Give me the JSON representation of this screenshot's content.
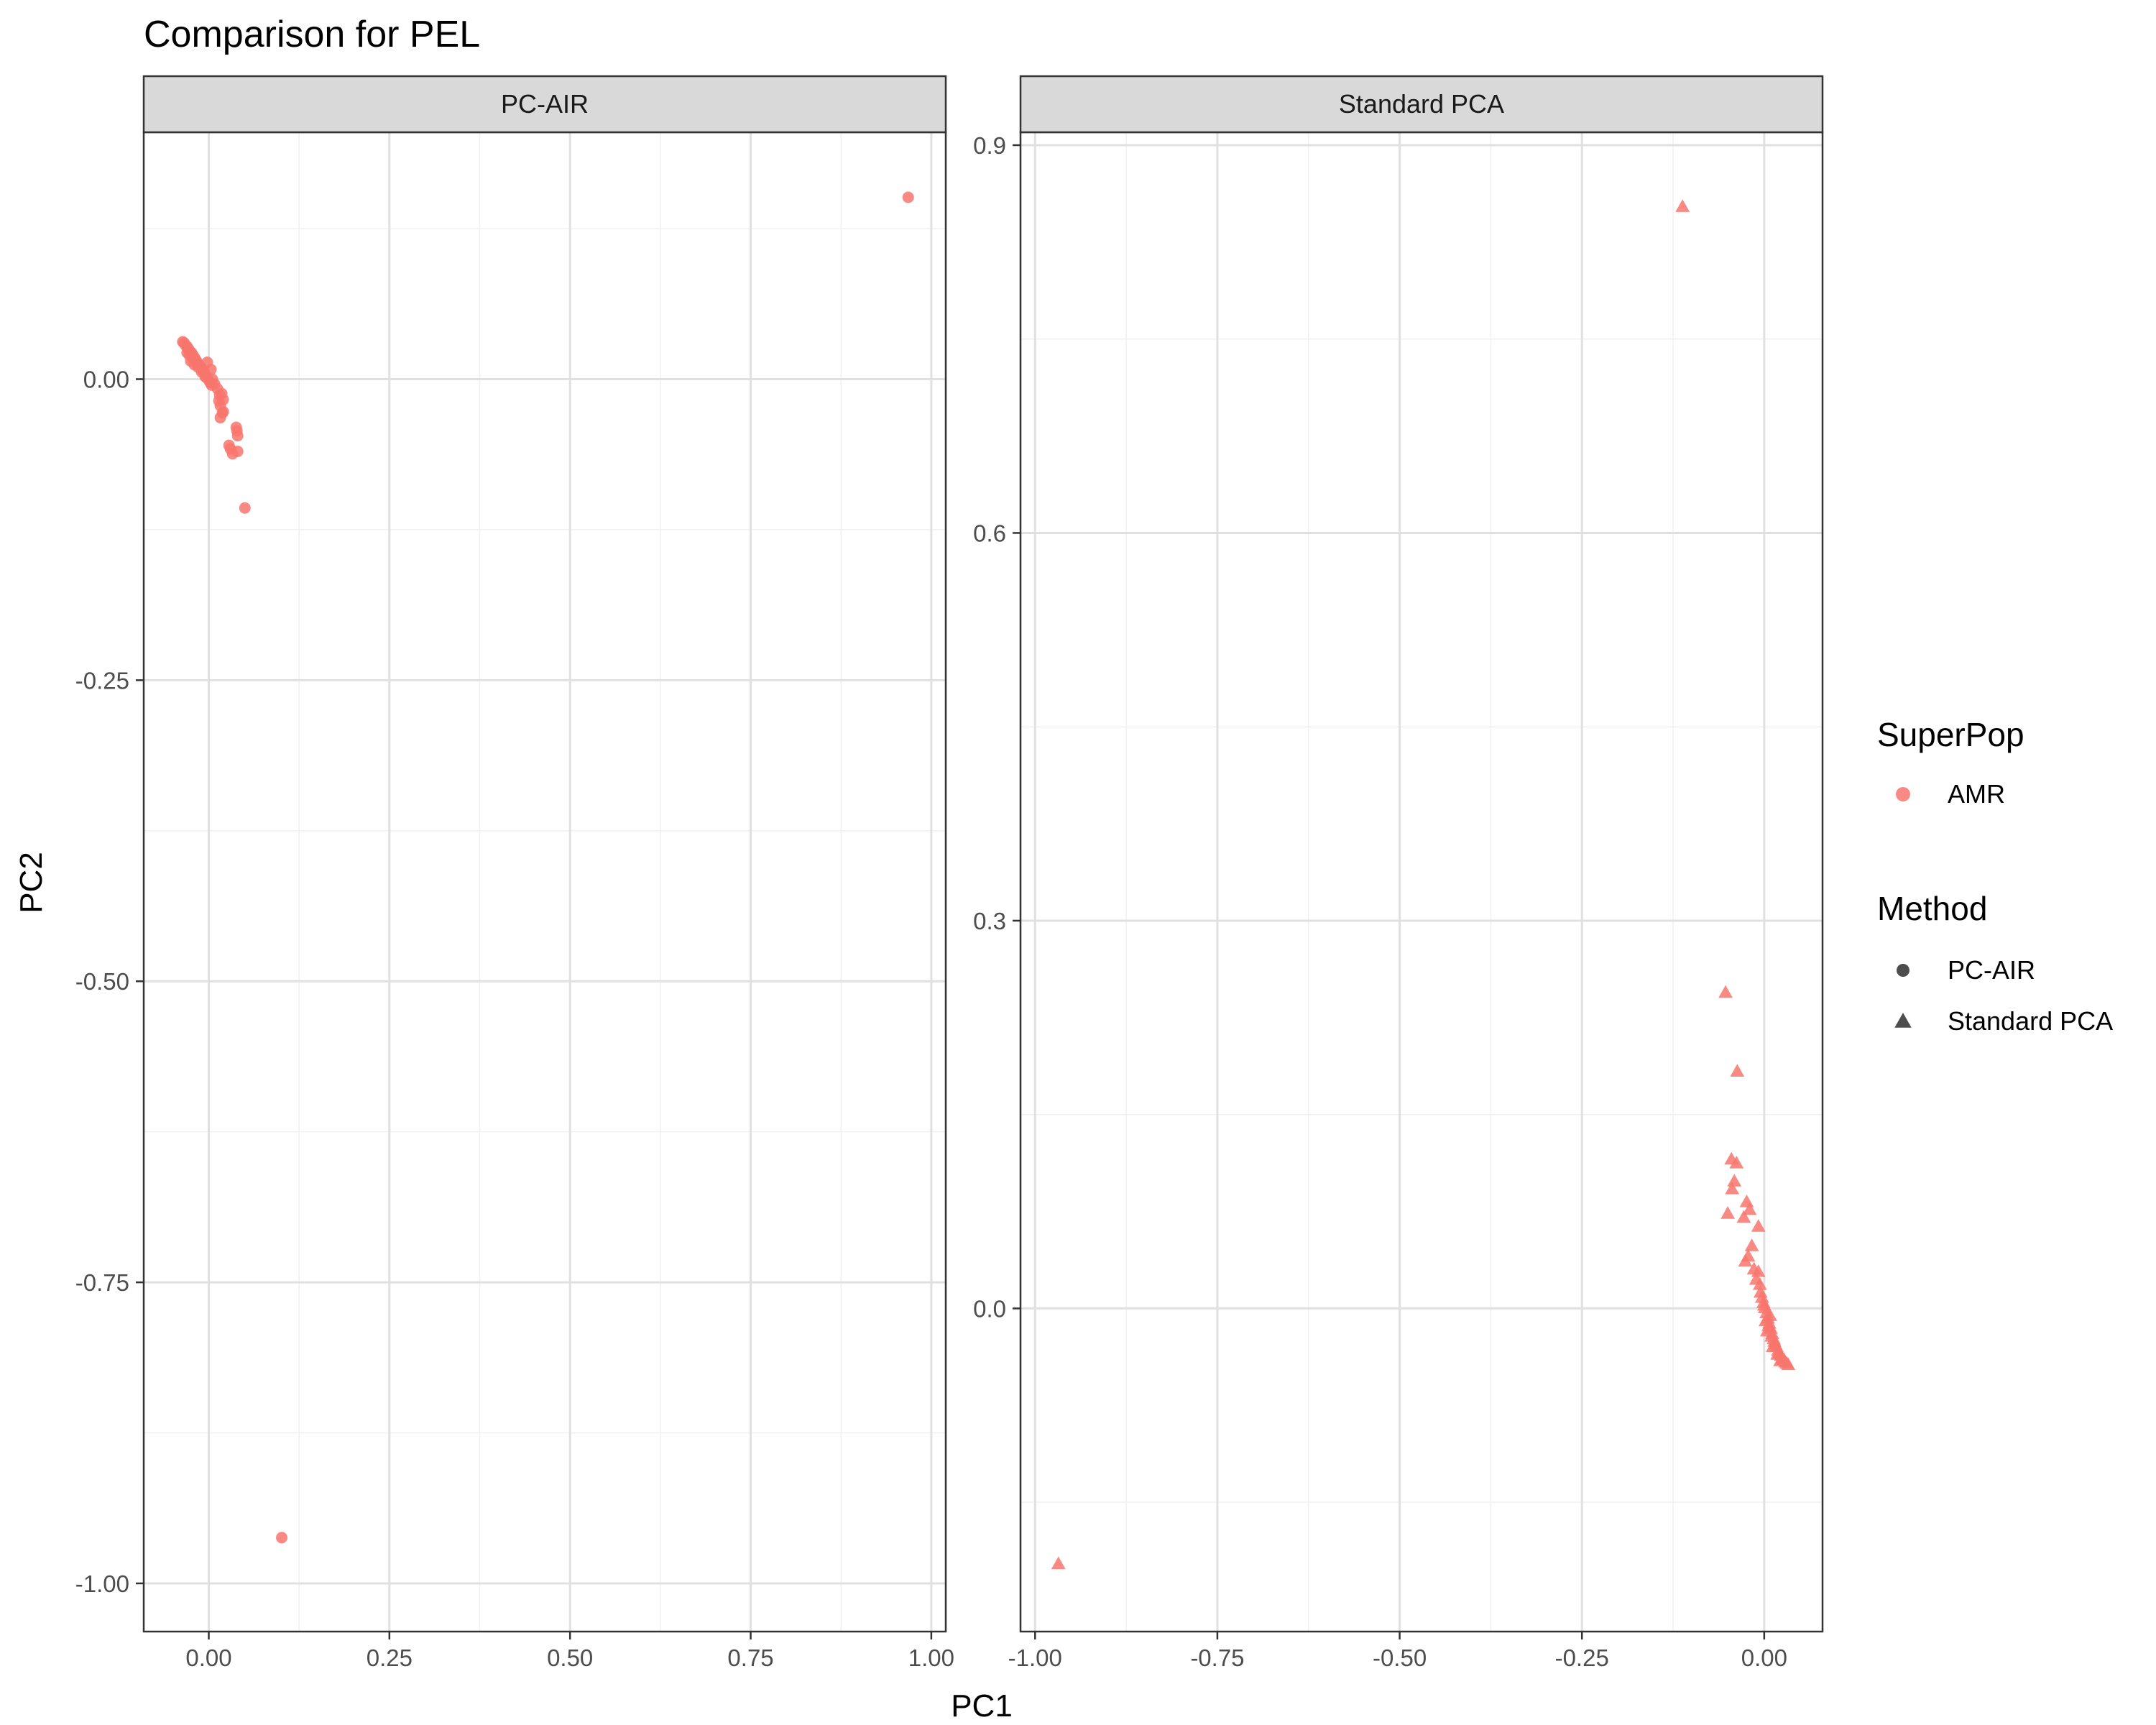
{
  "chart_data": {
    "type": "scatter",
    "title": "Comparison for PEL",
    "xlabel": "PC1",
    "ylabel": "PC2",
    "grid": true,
    "legend_position": "right",
    "colors": {
      "amr": "#F8766D",
      "panel_border": "#333333",
      "strip_fill": "#D9D9D9",
      "grid_major": "#E0E0E0",
      "grid_minor": "#F0F0F0",
      "legend_key": "#4D4D4D"
    },
    "legends": [
      {
        "title": "SuperPop",
        "items": [
          {
            "label": "AMR",
            "shape": "circle",
            "color": "#F8766D"
          }
        ]
      },
      {
        "title": "Method",
        "items": [
          {
            "label": "PC-AIR",
            "shape": "circle",
            "color": "#4D4D4D"
          },
          {
            "label": "Standard PCA",
            "shape": "triangle",
            "color": "#4D4D4D"
          }
        ]
      }
    ],
    "panels": [
      {
        "strip": "PC-AIR",
        "shape": "circle",
        "xlim": [
          -0.09,
          1.02
        ],
        "ylim": [
          -1.04,
          0.205
        ],
        "x_ticks": [
          0,
          0.25,
          0.5,
          0.75,
          1
        ],
        "x_tick_labels": [
          "0.00",
          "0.25",
          "0.50",
          "0.75",
          "1.00"
        ],
        "y_ticks": [
          -1,
          -0.75,
          -0.5,
          -0.25,
          0
        ],
        "y_tick_labels": [
          "-1.00",
          "-0.75",
          "-0.50",
          "-0.25",
          "0.00"
        ],
        "points": [
          [
            0.968,
            0.151
          ],
          [
            0.101,
            -0.962
          ],
          [
            0.05,
            -0.107
          ],
          [
            -0.036,
            0.031
          ],
          [
            -0.034,
            0.03
          ],
          [
            -0.032,
            0.028
          ],
          [
            -0.03,
            0.027
          ],
          [
            -0.028,
            0.025
          ],
          [
            -0.026,
            0.023
          ],
          [
            -0.024,
            0.022
          ],
          [
            -0.022,
            0.02
          ],
          [
            -0.02,
            0.018
          ],
          [
            -0.018,
            0.016
          ],
          [
            -0.016,
            0.014
          ],
          [
            -0.014,
            0.012
          ],
          [
            -0.012,
            0.011
          ],
          [
            -0.01,
            0.009
          ],
          [
            -0.008,
            0.007
          ],
          [
            -0.006,
            0.005
          ],
          [
            -0.004,
            0.003
          ],
          [
            -0.002,
            0.001
          ],
          [
            0.0,
            -0.001
          ],
          [
            0.002,
            -0.003
          ],
          [
            0.004,
            -0.005
          ],
          [
            -0.025,
            0.015
          ],
          [
            -0.02,
            0.012
          ],
          [
            -0.015,
            0.01
          ],
          [
            -0.01,
            0.006
          ],
          [
            -0.005,
            0.002
          ],
          [
            -0.002,
            0.014
          ],
          [
            0.003,
            0.008
          ],
          [
            0.005,
            0.0
          ],
          [
            0.008,
            -0.004
          ],
          [
            0.012,
            -0.008
          ],
          [
            0.015,
            -0.013
          ],
          [
            0.018,
            -0.012
          ],
          [
            0.02,
            -0.017
          ],
          [
            0.014,
            -0.018
          ],
          [
            0.016,
            -0.022
          ],
          [
            0.019,
            -0.028
          ],
          [
            0.016,
            -0.032
          ],
          [
            0.02,
            -0.027
          ],
          [
            0.038,
            -0.04
          ],
          [
            0.039,
            -0.043
          ],
          [
            0.04,
            -0.047
          ],
          [
            0.04,
            -0.06
          ],
          [
            0.03,
            -0.058
          ],
          [
            0.033,
            -0.062
          ],
          [
            0.028,
            -0.055
          ],
          [
            -0.03,
            0.022
          ],
          [
            -0.027,
            0.02
          ],
          [
            -0.023,
            0.018
          ]
        ]
      },
      {
        "strip": "Standard PCA",
        "shape": "triangle",
        "xlim": [
          -1.02,
          0.08
        ],
        "ylim": [
          -0.25,
          0.91
        ],
        "x_ticks": [
          -1,
          -0.75,
          -0.5,
          -0.25,
          0
        ],
        "x_tick_labels": [
          "-1.00",
          "-0.75",
          "-0.50",
          "-0.25",
          "0.00"
        ],
        "y_ticks": [
          0,
          0.3,
          0.6,
          0.9
        ],
        "y_tick_labels": [
          "0.0",
          "0.3",
          "0.6",
          "0.9"
        ],
        "points": [
          [
            -0.112,
            0.852
          ],
          [
            -0.968,
            -0.198
          ],
          [
            -0.053,
            0.244
          ],
          [
            -0.037,
            0.183
          ],
          [
            -0.045,
            0.115
          ],
          [
            -0.038,
            0.112
          ],
          [
            -0.041,
            0.098
          ],
          [
            -0.044,
            0.092
          ],
          [
            -0.05,
            0.073
          ],
          [
            -0.024,
            0.082
          ],
          [
            -0.02,
            0.076
          ],
          [
            -0.028,
            0.07
          ],
          [
            -0.008,
            0.063
          ],
          [
            -0.017,
            0.048
          ],
          [
            -0.022,
            0.04
          ],
          [
            -0.026,
            0.036
          ],
          [
            -0.014,
            0.03
          ],
          [
            -0.008,
            0.028
          ],
          [
            -0.011,
            0.022
          ],
          [
            -0.006,
            0.018
          ],
          [
            -0.005,
            0.012
          ],
          [
            -0.003,
            0.008
          ],
          [
            -0.001,
            0.004
          ],
          [
            0.001,
            0.0
          ],
          [
            0.003,
            -0.004
          ],
          [
            0.005,
            -0.008
          ],
          [
            0.007,
            -0.012
          ],
          [
            0.009,
            -0.016
          ],
          [
            0.011,
            -0.02
          ],
          [
            0.013,
            -0.024
          ],
          [
            0.015,
            -0.028
          ],
          [
            0.017,
            -0.03
          ],
          [
            0.019,
            -0.033
          ],
          [
            0.021,
            -0.035
          ],
          [
            0.023,
            -0.037
          ],
          [
            0.025,
            -0.039
          ],
          [
            0.027,
            -0.04
          ],
          [
            0.029,
            -0.042
          ],
          [
            0.031,
            -0.043
          ],
          [
            0.033,
            -0.044
          ],
          [
            0.002,
            -0.01
          ],
          [
            0.006,
            -0.014
          ],
          [
            0.01,
            -0.022
          ],
          [
            0.014,
            -0.026
          ],
          [
            0.0,
            0.002
          ],
          [
            0.004,
            -0.018
          ],
          [
            0.008,
            -0.006
          ],
          [
            0.012,
            -0.03
          ],
          [
            0.018,
            -0.036
          ],
          [
            0.022,
            -0.041
          ]
        ]
      }
    ]
  }
}
